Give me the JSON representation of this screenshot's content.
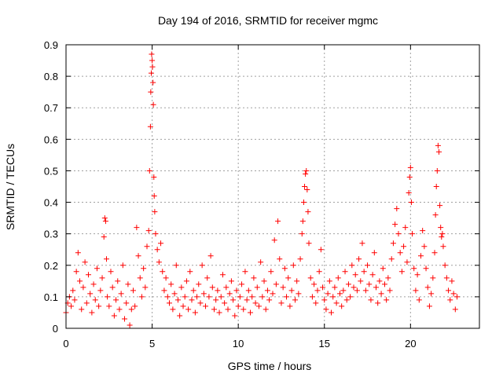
{
  "chart_data": {
    "type": "scatter",
    "title": "Day 194 of 2016, SRMTID for receiver mgmc",
    "xlabel": "GPS time / hours",
    "ylabel": "SRMTID / TECUs",
    "xlim": [
      0,
      24
    ],
    "ylim": [
      0,
      0.9
    ],
    "x_ticks": [
      0,
      5,
      10,
      15,
      20
    ],
    "x_tick_labels": [
      "0",
      "5",
      "10",
      "15",
      "20"
    ],
    "y_ticks": [
      0,
      0.1,
      0.2,
      0.3,
      0.4,
      0.5,
      0.6,
      0.7,
      0.8,
      0.9
    ],
    "y_tick_labels": [
      "0",
      "0.1",
      "0.2",
      "0.3",
      "0.4",
      "0.5",
      "0.6",
      "0.7",
      "0.8",
      "0.9"
    ],
    "grid": true,
    "marker": "plus",
    "color": "#ff0000",
    "series": [
      {
        "name": "SRMTID",
        "points": [
          [
            0.0,
            0.05
          ],
          [
            0.1,
            0.08
          ],
          [
            0.2,
            0.1
          ],
          [
            0.3,
            0.07
          ],
          [
            0.4,
            0.12
          ],
          [
            0.5,
            0.09
          ],
          [
            0.6,
            0.18
          ],
          [
            0.7,
            0.24
          ],
          [
            0.8,
            0.15
          ],
          [
            0.9,
            0.06
          ],
          [
            1.0,
            0.13
          ],
          [
            1.1,
            0.21
          ],
          [
            1.2,
            0.08
          ],
          [
            1.3,
            0.17
          ],
          [
            1.4,
            0.11
          ],
          [
            1.5,
            0.05
          ],
          [
            1.6,
            0.14
          ],
          [
            1.7,
            0.09
          ],
          [
            1.8,
            0.19
          ],
          [
            1.9,
            0.07
          ],
          [
            2.0,
            0.12
          ],
          [
            2.1,
            0.16
          ],
          [
            2.2,
            0.29
          ],
          [
            2.25,
            0.35
          ],
          [
            2.3,
            0.34
          ],
          [
            2.35,
            0.22
          ],
          [
            2.4,
            0.1
          ],
          [
            2.5,
            0.07
          ],
          [
            2.6,
            0.18
          ],
          [
            2.7,
            0.13
          ],
          [
            2.8,
            0.04
          ],
          [
            2.9,
            0.09
          ],
          [
            3.0,
            0.15
          ],
          [
            3.1,
            0.06
          ],
          [
            3.2,
            0.11
          ],
          [
            3.3,
            0.2
          ],
          [
            3.4,
            0.03
          ],
          [
            3.5,
            0.08
          ],
          [
            3.6,
            0.14
          ],
          [
            3.7,
            0.01
          ],
          [
            3.8,
            0.06
          ],
          [
            3.9,
            0.12
          ],
          [
            4.0,
            0.07
          ],
          [
            4.1,
            0.32
          ],
          [
            4.2,
            0.23
          ],
          [
            4.3,
            0.16
          ],
          [
            4.4,
            0.1
          ],
          [
            4.5,
            0.19
          ],
          [
            4.6,
            0.13
          ],
          [
            4.7,
            0.26
          ],
          [
            4.8,
            0.31
          ],
          [
            4.85,
            0.5
          ],
          [
            4.9,
            0.64
          ],
          [
            4.92,
            0.75
          ],
          [
            4.95,
            0.81
          ],
          [
            4.97,
            0.87
          ],
          [
            5.0,
            0.85
          ],
          [
            5.02,
            0.83
          ],
          [
            5.05,
            0.78
          ],
          [
            5.07,
            0.71
          ],
          [
            5.1,
            0.48
          ],
          [
            5.12,
            0.42
          ],
          [
            5.15,
            0.37
          ],
          [
            5.2,
            0.3
          ],
          [
            5.3,
            0.25
          ],
          [
            5.4,
            0.21
          ],
          [
            5.5,
            0.27
          ],
          [
            5.6,
            0.18
          ],
          [
            5.7,
            0.12
          ],
          [
            5.8,
            0.16
          ],
          [
            5.9,
            0.1
          ],
          [
            6.0,
            0.08
          ],
          [
            6.1,
            0.14
          ],
          [
            6.2,
            0.06
          ],
          [
            6.3,
            0.11
          ],
          [
            6.4,
            0.2
          ],
          [
            6.5,
            0.09
          ],
          [
            6.6,
            0.04
          ],
          [
            6.7,
            0.13
          ],
          [
            6.8,
            0.07
          ],
          [
            6.9,
            0.1
          ],
          [
            7.0,
            0.15
          ],
          [
            7.1,
            0.06
          ],
          [
            7.2,
            0.18
          ],
          [
            7.3,
            0.09
          ],
          [
            7.4,
            0.12
          ],
          [
            7.5,
            0.05
          ],
          [
            7.6,
            0.1
          ],
          [
            7.7,
            0.14
          ],
          [
            7.8,
            0.08
          ],
          [
            7.9,
            0.2
          ],
          [
            8.0,
            0.11
          ],
          [
            8.1,
            0.07
          ],
          [
            8.2,
            0.16
          ],
          [
            8.3,
            0.1
          ],
          [
            8.4,
            0.23
          ],
          [
            8.5,
            0.13
          ],
          [
            8.6,
            0.06
          ],
          [
            8.7,
            0.09
          ],
          [
            8.8,
            0.12
          ],
          [
            8.9,
            0.05
          ],
          [
            9.0,
            0.1
          ],
          [
            9.1,
            0.17
          ],
          [
            9.2,
            0.08
          ],
          [
            9.3,
            0.13
          ],
          [
            9.4,
            0.06
          ],
          [
            9.5,
            0.11
          ],
          [
            9.6,
            0.15
          ],
          [
            9.7,
            0.09
          ],
          [
            9.8,
            0.04
          ],
          [
            9.9,
            0.12
          ],
          [
            10.0,
            0.07
          ],
          [
            10.1,
            0.1
          ],
          [
            10.2,
            0.14
          ],
          [
            10.3,
            0.06
          ],
          [
            10.4,
            0.18
          ],
          [
            10.5,
            0.09
          ],
          [
            10.6,
            0.12
          ],
          [
            10.7,
            0.05
          ],
          [
            10.8,
            0.1
          ],
          [
            10.9,
            0.16
          ],
          [
            11.0,
            0.08
          ],
          [
            11.1,
            0.13
          ],
          [
            11.2,
            0.07
          ],
          [
            11.3,
            0.21
          ],
          [
            11.4,
            0.1
          ],
          [
            11.5,
            0.15
          ],
          [
            11.6,
            0.06
          ],
          [
            11.7,
            0.12
          ],
          [
            11.8,
            0.09
          ],
          [
            11.9,
            0.18
          ],
          [
            12.0,
            0.11
          ],
          [
            12.1,
            0.28
          ],
          [
            12.2,
            0.14
          ],
          [
            12.3,
            0.34
          ],
          [
            12.4,
            0.22
          ],
          [
            12.5,
            0.08
          ],
          [
            12.6,
            0.13
          ],
          [
            12.7,
            0.19
          ],
          [
            12.8,
            0.1
          ],
          [
            12.9,
            0.16
          ],
          [
            13.0,
            0.07
          ],
          [
            13.1,
            0.12
          ],
          [
            13.2,
            0.2
          ],
          [
            13.3,
            0.09
          ],
          [
            13.4,
            0.15
          ],
          [
            13.5,
            0.11
          ],
          [
            13.6,
            0.22
          ],
          [
            13.7,
            0.3
          ],
          [
            13.75,
            0.34
          ],
          [
            13.8,
            0.4
          ],
          [
            13.85,
            0.45
          ],
          [
            13.9,
            0.49
          ],
          [
            13.95,
            0.5
          ],
          [
            14.0,
            0.44
          ],
          [
            14.05,
            0.37
          ],
          [
            14.1,
            0.27
          ],
          [
            14.2,
            0.16
          ],
          [
            14.3,
            0.1
          ],
          [
            14.4,
            0.14
          ],
          [
            14.5,
            0.08
          ],
          [
            14.6,
            0.12
          ],
          [
            14.7,
            0.18
          ],
          [
            14.8,
            0.25
          ],
          [
            14.9,
            0.13
          ],
          [
            15.0,
            0.09
          ],
          [
            15.1,
            0.06
          ],
          [
            15.2,
            0.11
          ],
          [
            15.3,
            0.15
          ],
          [
            15.4,
            0.05
          ],
          [
            15.5,
            0.1
          ],
          [
            15.6,
            0.13
          ],
          [
            15.7,
            0.08
          ],
          [
            15.8,
            0.16
          ],
          [
            15.9,
            0.11
          ],
          [
            16.0,
            0.07
          ],
          [
            16.1,
            0.12
          ],
          [
            16.2,
            0.18
          ],
          [
            16.3,
            0.09
          ],
          [
            16.4,
            0.14
          ],
          [
            16.5,
            0.1
          ],
          [
            16.6,
            0.2
          ],
          [
            16.7,
            0.13
          ],
          [
            16.8,
            0.17
          ],
          [
            16.9,
            0.12
          ],
          [
            17.0,
            0.22
          ],
          [
            17.1,
            0.15
          ],
          [
            17.2,
            0.27
          ],
          [
            17.3,
            0.18
          ],
          [
            17.4,
            0.12
          ],
          [
            17.5,
            0.2
          ],
          [
            17.6,
            0.14
          ],
          [
            17.7,
            0.09
          ],
          [
            17.8,
            0.17
          ],
          [
            17.9,
            0.24
          ],
          [
            18.0,
            0.13
          ],
          [
            18.1,
            0.08
          ],
          [
            18.2,
            0.15
          ],
          [
            18.3,
            0.11
          ],
          [
            18.4,
            0.19
          ],
          [
            18.5,
            0.14
          ],
          [
            18.6,
            0.09
          ],
          [
            18.7,
            0.16
          ],
          [
            18.8,
            0.12
          ],
          [
            18.9,
            0.22
          ],
          [
            19.0,
            0.27
          ],
          [
            19.1,
            0.33
          ],
          [
            19.2,
            0.38
          ],
          [
            19.3,
            0.3
          ],
          [
            19.4,
            0.24
          ],
          [
            19.5,
            0.18
          ],
          [
            19.6,
            0.26
          ],
          [
            19.7,
            0.32
          ],
          [
            19.8,
            0.21
          ],
          [
            19.9,
            0.43
          ],
          [
            19.95,
            0.48
          ],
          [
            20.0,
            0.51
          ],
          [
            20.05,
            0.4
          ],
          [
            20.1,
            0.3
          ],
          [
            20.2,
            0.19
          ],
          [
            20.3,
            0.12
          ],
          [
            20.4,
            0.17
          ],
          [
            20.5,
            0.09
          ],
          [
            20.6,
            0.23
          ],
          [
            20.7,
            0.31
          ],
          [
            20.8,
            0.26
          ],
          [
            20.9,
            0.19
          ],
          [
            21.0,
            0.13
          ],
          [
            21.1,
            0.07
          ],
          [
            21.2,
            0.11
          ],
          [
            21.3,
            0.16
          ],
          [
            21.4,
            0.24
          ],
          [
            21.45,
            0.36
          ],
          [
            21.5,
            0.45
          ],
          [
            21.55,
            0.5
          ],
          [
            21.6,
            0.58
          ],
          [
            21.65,
            0.56
          ],
          [
            21.7,
            0.39
          ],
          [
            21.75,
            0.32
          ],
          [
            21.8,
            0.29
          ],
          [
            21.85,
            0.3
          ],
          [
            21.9,
            0.26
          ],
          [
            22.0,
            0.2
          ],
          [
            22.1,
            0.16
          ],
          [
            22.2,
            0.12
          ],
          [
            22.3,
            0.09
          ],
          [
            22.4,
            0.15
          ],
          [
            22.5,
            0.11
          ],
          [
            22.6,
            0.06
          ],
          [
            22.7,
            0.1
          ]
        ]
      }
    ]
  }
}
